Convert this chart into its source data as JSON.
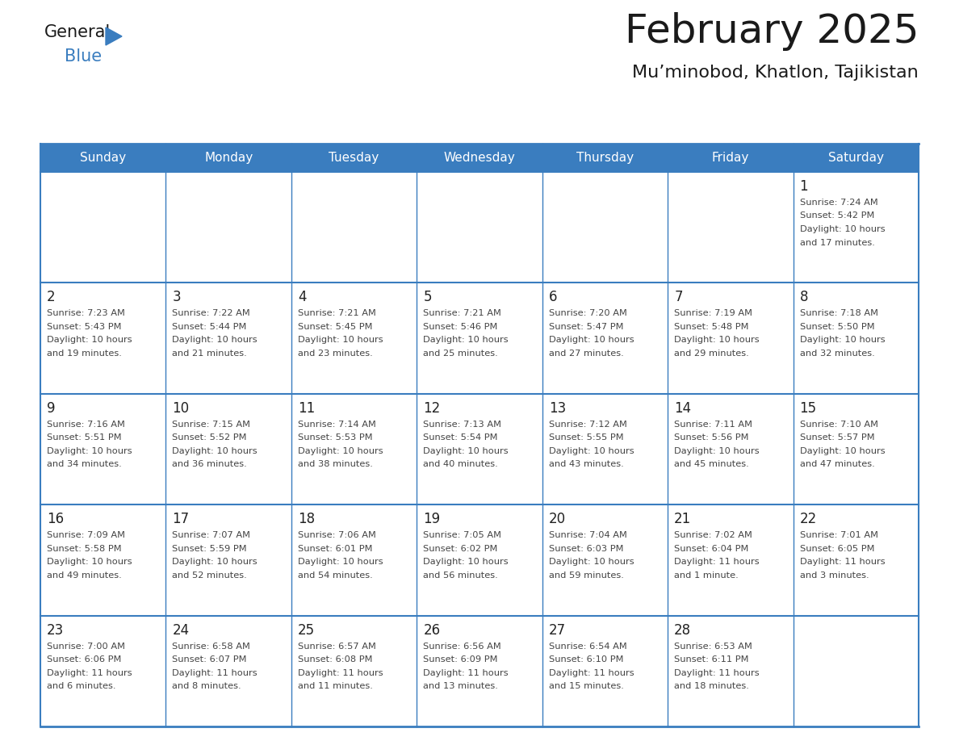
{
  "title": "February 2025",
  "subtitle": "Mu’minobod, Khatlon, Tajikistan",
  "days_of_week": [
    "Sunday",
    "Monday",
    "Tuesday",
    "Wednesday",
    "Thursday",
    "Friday",
    "Saturday"
  ],
  "header_bg": "#3a7dbf",
  "header_text": "#ffffff",
  "cell_bg": "#ffffff",
  "border_color": "#3a7dbf",
  "row_divider_color": "#3a7dbf",
  "day_number_color": "#222222",
  "info_text_color": "#444444",
  "title_color": "#1a1a1a",
  "subtitle_color": "#1a1a1a",
  "logo_general_color": "#1a1a1a",
  "logo_blue_color": "#3a7dbf",
  "logo_triangle_color": "#3a7dbf",
  "calendar_data": [
    [
      null,
      null,
      null,
      null,
      null,
      null,
      {
        "day": "1",
        "sunrise": "7:24 AM",
        "sunset": "5:42 PM",
        "daylight": "10 hours",
        "daylight2": "and 17 minutes."
      }
    ],
    [
      {
        "day": "2",
        "sunrise": "7:23 AM",
        "sunset": "5:43 PM",
        "daylight": "10 hours",
        "daylight2": "and 19 minutes."
      },
      {
        "day": "3",
        "sunrise": "7:22 AM",
        "sunset": "5:44 PM",
        "daylight": "10 hours",
        "daylight2": "and 21 minutes."
      },
      {
        "day": "4",
        "sunrise": "7:21 AM",
        "sunset": "5:45 PM",
        "daylight": "10 hours",
        "daylight2": "and 23 minutes."
      },
      {
        "day": "5",
        "sunrise": "7:21 AM",
        "sunset": "5:46 PM",
        "daylight": "10 hours",
        "daylight2": "and 25 minutes."
      },
      {
        "day": "6",
        "sunrise": "7:20 AM",
        "sunset": "5:47 PM",
        "daylight": "10 hours",
        "daylight2": "and 27 minutes."
      },
      {
        "day": "7",
        "sunrise": "7:19 AM",
        "sunset": "5:48 PM",
        "daylight": "10 hours",
        "daylight2": "and 29 minutes."
      },
      {
        "day": "8",
        "sunrise": "7:18 AM",
        "sunset": "5:50 PM",
        "daylight": "10 hours",
        "daylight2": "and 32 minutes."
      }
    ],
    [
      {
        "day": "9",
        "sunrise": "7:16 AM",
        "sunset": "5:51 PM",
        "daylight": "10 hours",
        "daylight2": "and 34 minutes."
      },
      {
        "day": "10",
        "sunrise": "7:15 AM",
        "sunset": "5:52 PM",
        "daylight": "10 hours",
        "daylight2": "and 36 minutes."
      },
      {
        "day": "11",
        "sunrise": "7:14 AM",
        "sunset": "5:53 PM",
        "daylight": "10 hours",
        "daylight2": "and 38 minutes."
      },
      {
        "day": "12",
        "sunrise": "7:13 AM",
        "sunset": "5:54 PM",
        "daylight": "10 hours",
        "daylight2": "and 40 minutes."
      },
      {
        "day": "13",
        "sunrise": "7:12 AM",
        "sunset": "5:55 PM",
        "daylight": "10 hours",
        "daylight2": "and 43 minutes."
      },
      {
        "day": "14",
        "sunrise": "7:11 AM",
        "sunset": "5:56 PM",
        "daylight": "10 hours",
        "daylight2": "and 45 minutes."
      },
      {
        "day": "15",
        "sunrise": "7:10 AM",
        "sunset": "5:57 PM",
        "daylight": "10 hours",
        "daylight2": "and 47 minutes."
      }
    ],
    [
      {
        "day": "16",
        "sunrise": "7:09 AM",
        "sunset": "5:58 PM",
        "daylight": "10 hours",
        "daylight2": "and 49 minutes."
      },
      {
        "day": "17",
        "sunrise": "7:07 AM",
        "sunset": "5:59 PM",
        "daylight": "10 hours",
        "daylight2": "and 52 minutes."
      },
      {
        "day": "18",
        "sunrise": "7:06 AM",
        "sunset": "6:01 PM",
        "daylight": "10 hours",
        "daylight2": "and 54 minutes."
      },
      {
        "day": "19",
        "sunrise": "7:05 AM",
        "sunset": "6:02 PM",
        "daylight": "10 hours",
        "daylight2": "and 56 minutes."
      },
      {
        "day": "20",
        "sunrise": "7:04 AM",
        "sunset": "6:03 PM",
        "daylight": "10 hours",
        "daylight2": "and 59 minutes."
      },
      {
        "day": "21",
        "sunrise": "7:02 AM",
        "sunset": "6:04 PM",
        "daylight": "11 hours",
        "daylight2": "and 1 minute."
      },
      {
        "day": "22",
        "sunrise": "7:01 AM",
        "sunset": "6:05 PM",
        "daylight": "11 hours",
        "daylight2": "and 3 minutes."
      }
    ],
    [
      {
        "day": "23",
        "sunrise": "7:00 AM",
        "sunset": "6:06 PM",
        "daylight": "11 hours",
        "daylight2": "and 6 minutes."
      },
      {
        "day": "24",
        "sunrise": "6:58 AM",
        "sunset": "6:07 PM",
        "daylight": "11 hours",
        "daylight2": "and 8 minutes."
      },
      {
        "day": "25",
        "sunrise": "6:57 AM",
        "sunset": "6:08 PM",
        "daylight": "11 hours",
        "daylight2": "and 11 minutes."
      },
      {
        "day": "26",
        "sunrise": "6:56 AM",
        "sunset": "6:09 PM",
        "daylight": "11 hours",
        "daylight2": "and 13 minutes."
      },
      {
        "day": "27",
        "sunrise": "6:54 AM",
        "sunset": "6:10 PM",
        "daylight": "11 hours",
        "daylight2": "and 15 minutes."
      },
      {
        "day": "28",
        "sunrise": "6:53 AM",
        "sunset": "6:11 PM",
        "daylight": "11 hours",
        "daylight2": "and 18 minutes."
      },
      null
    ]
  ]
}
